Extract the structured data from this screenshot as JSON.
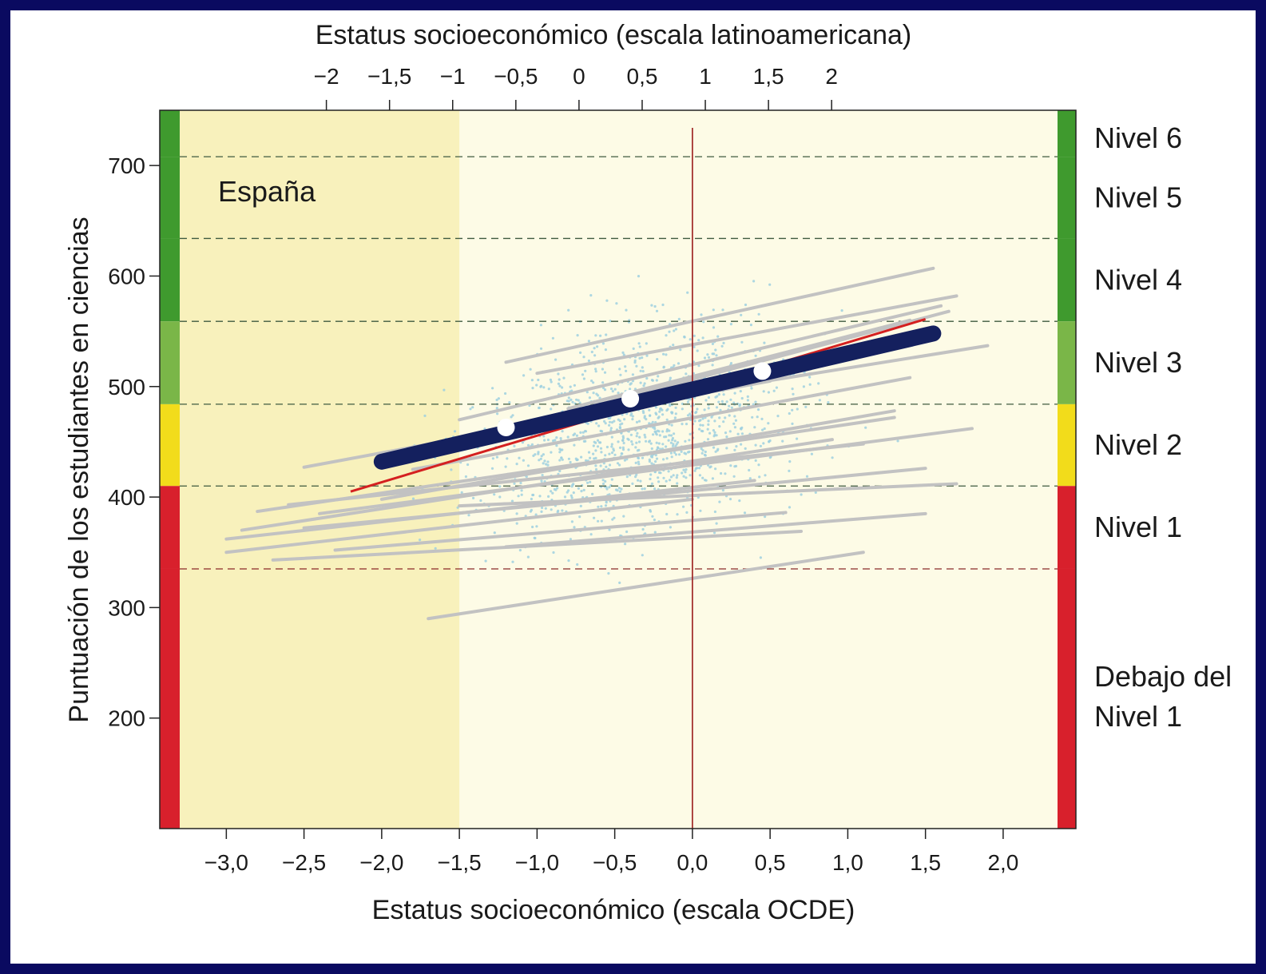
{
  "chart_data": {
    "type": "scatter",
    "title": "",
    "annotation": "España",
    "xlabel": "Estatus socioeconómico (escala OCDE)",
    "x2label": "Estatus socioeconómico (escala latinoamericana)",
    "ylabel": "Puntuación de los estudiantes en ciencias",
    "xlim": [
      -3.3,
      2.35
    ],
    "ylim": [
      100,
      750
    ],
    "x_ticks": [
      -3.0,
      -2.5,
      -2.0,
      -1.5,
      -1.0,
      -0.5,
      0.0,
      0.5,
      1.0,
      1.5,
      2.0
    ],
    "x_tick_labels": [
      "−3,0",
      "−2,5",
      "−2,0",
      "−1,5",
      "−1,0",
      "−0,5",
      "0,0",
      "0,5",
      "1,0",
      "1,5",
      "2,0"
    ],
    "x2_ticks": [
      -2,
      -1.5,
      -1,
      -0.5,
      0,
      0.5,
      1,
      1.5,
      2
    ],
    "x2_tick_labels": [
      "−2",
      "−1,5",
      "−1",
      "−0,5",
      "0",
      "0,5",
      "1",
      "1,5",
      "2"
    ],
    "x2_to_x": {
      "slope": 0.813,
      "intercept": -0.73
    },
    "y_ticks": [
      200,
      300,
      400,
      500,
      600,
      700
    ],
    "y_tick_labels": [
      "200",
      "300",
      "400",
      "500",
      "600",
      "700"
    ],
    "grid": false,
    "shaded_region_x": [
      -3.3,
      -1.5
    ],
    "reference_line_x": 0.0,
    "level_thresholds": [
      335,
      410,
      484,
      559,
      634,
      708
    ],
    "levels": [
      {
        "name": "Nivel 6",
        "from": 708,
        "to": 750,
        "color": "#3f9a2e"
      },
      {
        "name": "Nivel 5",
        "from": 634,
        "to": 708,
        "color": "#3f9a2e"
      },
      {
        "name": "Nivel 4",
        "from": 559,
        "to": 634,
        "color": "#3f9a2e"
      },
      {
        "name": "Nivel 3",
        "from": 484,
        "to": 559,
        "color": "#7ab648"
      },
      {
        "name": "Nivel 2",
        "from": 410,
        "to": 484,
        "color": "#f2dc1b"
      },
      {
        "name": "Nivel 1",
        "from": 335,
        "to": 410,
        "color": "#d8202c"
      },
      {
        "name": "Debajo del Nivel 1",
        "line1": "Debajo del",
        "line2": "Nivel 1",
        "from": 100,
        "to": 335,
        "color": "#d8202c"
      }
    ],
    "spain_gradient": {
      "x": [
        -2.0,
        1.55
      ],
      "y": [
        432,
        548
      ],
      "color": "#14205e"
    },
    "spain_markers": [
      {
        "x": -1.2,
        "y": 463
      },
      {
        "x": -0.4,
        "y": 489
      },
      {
        "x": 0.45,
        "y": 514
      }
    ],
    "oecd_gradient": {
      "x": [
        -2.2,
        1.5
      ],
      "y": [
        405,
        561
      ],
      "color": "#d42020"
    },
    "other_gradients": [
      {
        "x": [
          -2.5,
          0.5
        ],
        "y": [
          427,
          505
        ]
      },
      {
        "x": [
          -1.2,
          1.55
        ],
        "y": [
          522,
          607
        ]
      },
      {
        "x": [
          -1.0,
          1.7
        ],
        "y": [
          512,
          582
        ]
      },
      {
        "x": [
          -1.5,
          1.6
        ],
        "y": [
          470,
          573
        ]
      },
      {
        "x": [
          -1.3,
          1.65
        ],
        "y": [
          458,
          568
        ]
      },
      {
        "x": [
          -0.8,
          1.4
        ],
        "y": [
          480,
          560
        ]
      },
      {
        "x": [
          -0.5,
          1.9
        ],
        "y": [
          483,
          537
        ]
      },
      {
        "x": [
          -1.8,
          1.4
        ],
        "y": [
          425,
          508
        ]
      },
      {
        "x": [
          -2.8,
          1.3
        ],
        "y": [
          387,
          472
        ]
      },
      {
        "x": [
          -2.4,
          1.8
        ],
        "y": [
          385,
          462
        ]
      },
      {
        "x": [
          -2.9,
          0.9
        ],
        "y": [
          370,
          452
        ]
      },
      {
        "x": [
          -2.6,
          1.1
        ],
        "y": [
          393,
          448
        ]
      },
      {
        "x": [
          -3.0,
          0.4
        ],
        "y": [
          362,
          415
        ]
      },
      {
        "x": [
          -3.0,
          0.0
        ],
        "y": [
          350,
          398
        ]
      },
      {
        "x": [
          -2.5,
          1.5
        ],
        "y": [
          372,
          426
        ]
      },
      {
        "x": [
          -1.5,
          1.7
        ],
        "y": [
          392,
          412
        ]
      },
      {
        "x": [
          -2.3,
          0.6
        ],
        "y": [
          352,
          386
        ]
      },
      {
        "x": [
          -1.2,
          1.5
        ],
        "y": [
          355,
          385
        ]
      },
      {
        "x": [
          -2.7,
          0.7
        ],
        "y": [
          343,
          369
        ]
      },
      {
        "x": [
          -1.7,
          1.1
        ],
        "y": [
          290,
          350
        ]
      },
      {
        "x": [
          -2.0,
          1.3
        ],
        "y": [
          398,
          478
        ]
      }
    ]
  },
  "colors": {
    "frame": "#0a0a60",
    "plot_bg": "#fdfbe6",
    "shaded": "#f8f1bc",
    "dots": "#9fd0df",
    "lines": "#c2c2c2"
  }
}
